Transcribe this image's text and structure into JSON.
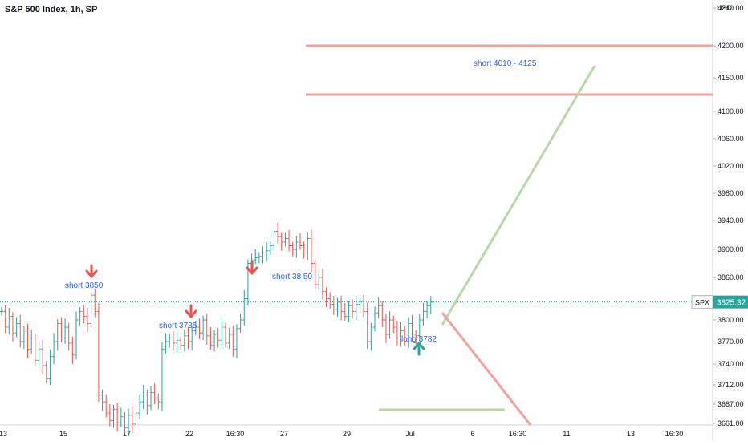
{
  "header": {
    "title": "S&P 500 Index, 1h, SP"
  },
  "price_axis": {
    "currency": "USD",
    "ticks": [
      "4240.00",
      "4200.00",
      "4150.00",
      "4100.00",
      "4060.00",
      "4020.00",
      "3980.00",
      "3940.00",
      "3900.00",
      "3860.00",
      "3800.00",
      "3770.00",
      "3740.00",
      "3712.00",
      "3687.00",
      "3661.00"
    ],
    "last_symbol": "SPX",
    "last_price": "3825.32"
  },
  "time_axis": {
    "ticks": [
      "13",
      "15",
      "17",
      "22",
      "16:30",
      "27",
      "29",
      "Jul",
      "6",
      "16:30",
      "11",
      "13",
      "16:30"
    ]
  },
  "annotations": {
    "short_3850": "short  3850",
    "short_3785": "short  3785",
    "short_3850b": "short  38 50",
    "long_3782": "long  3782",
    "short_target": "short  4010 - 4125"
  },
  "colors": {
    "up": "#26a69a",
    "down": "#ef5350",
    "resistance": "#f4a09c",
    "projection_up": "#b7d9a8",
    "projection_down": "#f4a09c",
    "text_blue": "#2962ff",
    "price_line": "#26a69a"
  },
  "chart_data": {
    "type": "ohlc",
    "symbol": "S&P 500 Index",
    "interval": "1h",
    "price_range": [
      3650,
      4250
    ],
    "last_price": 3825.32,
    "horizontal_levels": [
      4200,
      4125
    ],
    "series": [
      {
        "c": 3812
      },
      {
        "c": 3790
      },
      {
        "c": 3805
      },
      {
        "c": 3782
      },
      {
        "c": 3795
      },
      {
        "c": 3770
      },
      {
        "c": 3786
      },
      {
        "c": 3760
      },
      {
        "c": 3775
      },
      {
        "c": 3745
      },
      {
        "c": 3760
      },
      {
        "c": 3738
      },
      {
        "c": 3720
      },
      {
        "c": 3750
      },
      {
        "c": 3770
      },
      {
        "c": 3795
      },
      {
        "c": 3775
      },
      {
        "c": 3790
      },
      {
        "c": 3768
      },
      {
        "c": 3752
      },
      {
        "c": 3800
      },
      {
        "c": 3812
      },
      {
        "c": 3805
      },
      {
        "c": 3795
      },
      {
        "c": 3835
      },
      {
        "c": 3812
      },
      {
        "c": 3700
      },
      {
        "c": 3690
      },
      {
        "c": 3675
      },
      {
        "c": 3665
      },
      {
        "c": 3680
      },
      {
        "c": 3662
      },
      {
        "c": 3670
      },
      {
        "c": 3655
      },
      {
        "c": 3672
      },
      {
        "c": 3660
      },
      {
        "c": 3675
      },
      {
        "c": 3690
      },
      {
        "c": 3700
      },
      {
        "c": 3685
      },
      {
        "c": 3702
      },
      {
        "c": 3695
      },
      {
        "c": 3690
      },
      {
        "c": 3760
      },
      {
        "c": 3770
      },
      {
        "c": 3775
      },
      {
        "c": 3768
      },
      {
        "c": 3772
      },
      {
        "c": 3765
      },
      {
        "c": 3778
      },
      {
        "c": 3770
      },
      {
        "c": 3785
      },
      {
        "c": 3790
      },
      {
        "c": 3782
      },
      {
        "c": 3800
      },
      {
        "c": 3778
      },
      {
        "c": 3765
      },
      {
        "c": 3780
      },
      {
        "c": 3772
      },
      {
        "c": 3790
      },
      {
        "c": 3768
      },
      {
        "c": 3780
      },
      {
        "c": 3760
      },
      {
        "c": 3788
      },
      {
        "c": 3800
      },
      {
        "c": 3830
      },
      {
        "c": 3880
      },
      {
        "c": 3885
      },
      {
        "c": 3888
      },
      {
        "c": 3890
      },
      {
        "c": 3895
      },
      {
        "c": 3898
      },
      {
        "c": 3905
      },
      {
        "c": 3925
      },
      {
        "c": 3918
      },
      {
        "c": 3910
      },
      {
        "c": 3915
      },
      {
        "c": 3905
      },
      {
        "c": 3900
      },
      {
        "c": 3910
      },
      {
        "c": 3905
      },
      {
        "c": 3895
      },
      {
        "c": 3915
      },
      {
        "c": 3880
      },
      {
        "c": 3850
      },
      {
        "c": 3860
      },
      {
        "c": 3840
      },
      {
        "c": 3830
      },
      {
        "c": 3822
      },
      {
        "c": 3815
      },
      {
        "c": 3825
      },
      {
        "c": 3812
      },
      {
        "c": 3805
      },
      {
        "c": 3820
      },
      {
        "c": 3812
      },
      {
        "c": 3822
      },
      {
        "c": 3826
      },
      {
        "c": 3812
      },
      {
        "c": 3770
      },
      {
        "c": 3790
      },
      {
        "c": 3810
      },
      {
        "c": 3820
      },
      {
        "c": 3800
      },
      {
        "c": 3780
      },
      {
        "c": 3800
      },
      {
        "c": 3790
      },
      {
        "c": 3775
      },
      {
        "c": 3785
      },
      {
        "c": 3770
      },
      {
        "c": 3795
      },
      {
        "c": 3780
      },
      {
        "c": 3778
      },
      {
        "c": 3800
      },
      {
        "c": 3812
      },
      {
        "c": 3820
      },
      {
        "c": 3825
      }
    ]
  }
}
